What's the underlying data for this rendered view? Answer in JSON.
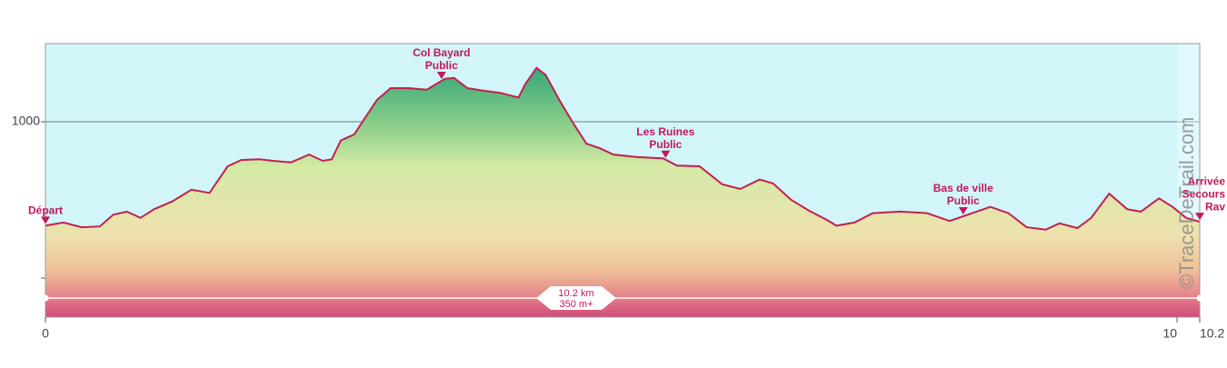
{
  "chart_data": {
    "type": "area",
    "x": [
      0,
      0.16,
      0.32,
      0.48,
      0.6,
      0.72,
      0.84,
      0.96,
      1.12,
      1.29,
      1.45,
      1.61,
      1.73,
      1.89,
      2.01,
      2.17,
      2.33,
      2.45,
      2.53,
      2.61,
      2.73,
      2.81,
      2.93,
      3.05,
      3.21,
      3.37,
      3.53,
      3.61,
      3.73,
      3.86,
      4.02,
      4.18,
      4.24,
      4.34,
      4.42,
      4.54,
      4.66,
      4.78,
      4.9,
      5.02,
      5.22,
      5.46,
      5.58,
      5.78,
      5.98,
      6.14,
      6.31,
      6.43,
      6.59,
      6.75,
      6.91,
      6.99,
      7.15,
      7.31,
      7.55,
      7.79,
      7.99,
      8.19,
      8.35,
      8.51,
      8.67,
      8.84,
      8.96,
      9.12,
      9.24,
      9.4,
      9.56,
      9.68,
      9.84,
      9.96,
      10.08,
      10.2
    ],
    "values": [
      867,
      871,
      865,
      866,
      881,
      885,
      877,
      888,
      898,
      913,
      909,
      943,
      951,
      952,
      950,
      948,
      958,
      950,
      952,
      976,
      984,
      1002,
      1028,
      1043,
      1043,
      1041,
      1055,
      1056,
      1043,
      1040,
      1037,
      1031,
      1048,
      1069,
      1060,
      1028,
      999,
      972,
      966,
      958,
      955,
      953,
      944,
      943,
      920,
      914,
      926,
      921,
      900,
      886,
      874,
      867,
      871,
      883,
      885,
      883,
      873,
      883,
      891,
      883,
      865,
      862,
      870,
      864,
      877,
      908,
      888,
      885,
      902,
      891,
      877,
      872
    ],
    "line_color": "#c2204e",
    "background_color": "#d2f5fa",
    "xlim": [
      0,
      10.2
    ],
    "ylim": [
      750,
      1100
    ],
    "xticks": [
      0,
      10,
      10.2
    ],
    "yticks": [
      1000
    ],
    "ygrid": [
      800,
      1000
    ],
    "annotations": [
      {
        "x": 0,
        "lines": [
          "Départ"
        ]
      },
      {
        "x": 3.5,
        "lines": [
          "Col Bayard",
          "Public"
        ]
      },
      {
        "x": 5.48,
        "lines": [
          "Les Ruines",
          "Public"
        ]
      },
      {
        "x": 8.11,
        "lines": [
          "Bas de ville",
          "Public"
        ]
      },
      {
        "x": 10.2,
        "lines": [
          "Arrivée",
          "Secours",
          "Rav"
        ]
      }
    ],
    "summary": [
      "10.2 km",
      "350 m+"
    ],
    "watermark": "©TraceDeTrail.com"
  }
}
